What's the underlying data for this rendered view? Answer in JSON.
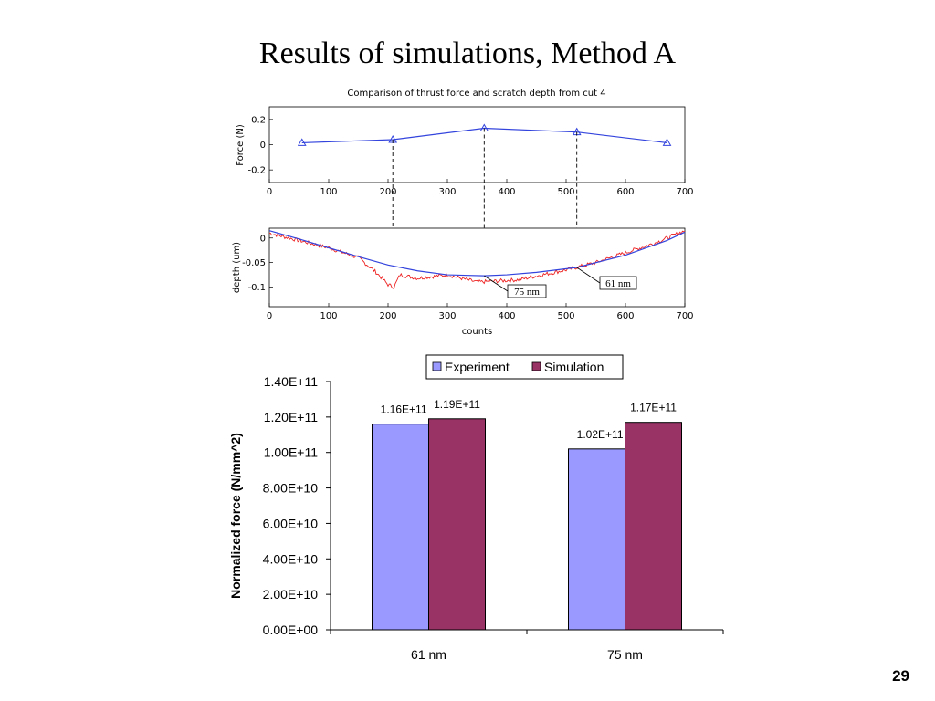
{
  "slide": {
    "title": "Results of simulations, Method A",
    "page_number": "29"
  },
  "chart_data": [
    {
      "type": "line",
      "title": "Comparison of thrust force and scratch depth from cut 4",
      "xlabel": "",
      "ylabel": "Force (N)",
      "xlim": [
        0,
        700
      ],
      "ylim": [
        -0.3,
        0.3
      ],
      "xticks": [
        "0",
        "100",
        "200",
        "300",
        "400",
        "500",
        "600",
        "700"
      ],
      "yticks": [
        "0.2",
        "0",
        "-0.2"
      ],
      "series": [
        {
          "color": "#3344dd",
          "marker": "triangle",
          "x": [
            55,
            208,
            362,
            518,
            670
          ],
          "y": [
            0.015,
            0.04,
            0.13,
            0.1,
            0.015
          ]
        }
      ]
    },
    {
      "type": "line",
      "xlabel": "counts",
      "ylabel": "depth (um)",
      "xlim": [
        0,
        700
      ],
      "ylim": [
        -0.14,
        0.02
      ],
      "xticks": [
        "0",
        "100",
        "200",
        "300",
        "400",
        "500",
        "600",
        "700"
      ],
      "yticks": [
        "0",
        "-0.05",
        "-0.1"
      ],
      "series": [
        {
          "color": "#3344dd",
          "x": [
            0,
            50,
            100,
            150,
            200,
            250,
            300,
            362,
            400,
            450,
            518,
            600,
            670,
            700
          ],
          "y": [
            0.015,
            -0.002,
            -0.02,
            -0.038,
            -0.055,
            -0.067,
            -0.075,
            -0.077,
            -0.075,
            -0.07,
            -0.06,
            -0.035,
            -0.005,
            0.012
          ]
        },
        {
          "color": "#ee2222",
          "x": [
            0,
            50,
            100,
            150,
            180,
            200,
            210,
            220,
            250,
            300,
            350,
            380,
            420,
            460,
            500,
            550,
            600,
            650,
            700
          ],
          "y": [
            0.01,
            -0.005,
            -0.02,
            -0.04,
            -0.07,
            -0.095,
            -0.1,
            -0.075,
            -0.082,
            -0.075,
            -0.09,
            -0.088,
            -0.085,
            -0.075,
            -0.065,
            -0.05,
            -0.03,
            -0.01,
            0.015
          ]
        }
      ],
      "annotations": [
        {
          "text": "61 nm",
          "x": 518
        },
        {
          "text": "75 nm",
          "x": 362
        }
      ],
      "guide_lines_x": [
        208,
        362,
        518
      ]
    },
    {
      "type": "bar",
      "categories": [
        "61 nm",
        "75 nm"
      ],
      "series": [
        {
          "name": "Experiment",
          "color": "#9999ff",
          "values": [
            116000000000.0,
            102000000000.0
          ],
          "labels": [
            "1.16E+11",
            "1.02E+11"
          ]
        },
        {
          "name": "Simulation",
          "color": "#993366",
          "values": [
            119000000000.0,
            117000000000.0
          ],
          "labels": [
            "1.19E+11",
            "1.17E+11"
          ]
        }
      ],
      "ylabel": "Normalized force (N/mm^2)",
      "ylim": [
        0,
        140000000000.0
      ],
      "yticks": [
        {
          "value": 0,
          "label": "0.00E+00"
        },
        {
          "value": 20000000000.0,
          "label": "2.00E+10"
        },
        {
          "value": 40000000000.0,
          "label": "4.00E+10"
        },
        {
          "value": 60000000000.0,
          "label": "6.00E+10"
        },
        {
          "value": 80000000000.0,
          "label": "8.00E+10"
        },
        {
          "value": 100000000000.0,
          "label": "1.00E+11"
        },
        {
          "value": 120000000000.0,
          "label": "1.20E+11"
        },
        {
          "value": 140000000000.0,
          "label": "1.40E+11"
        }
      ],
      "legend_position": "top"
    }
  ]
}
